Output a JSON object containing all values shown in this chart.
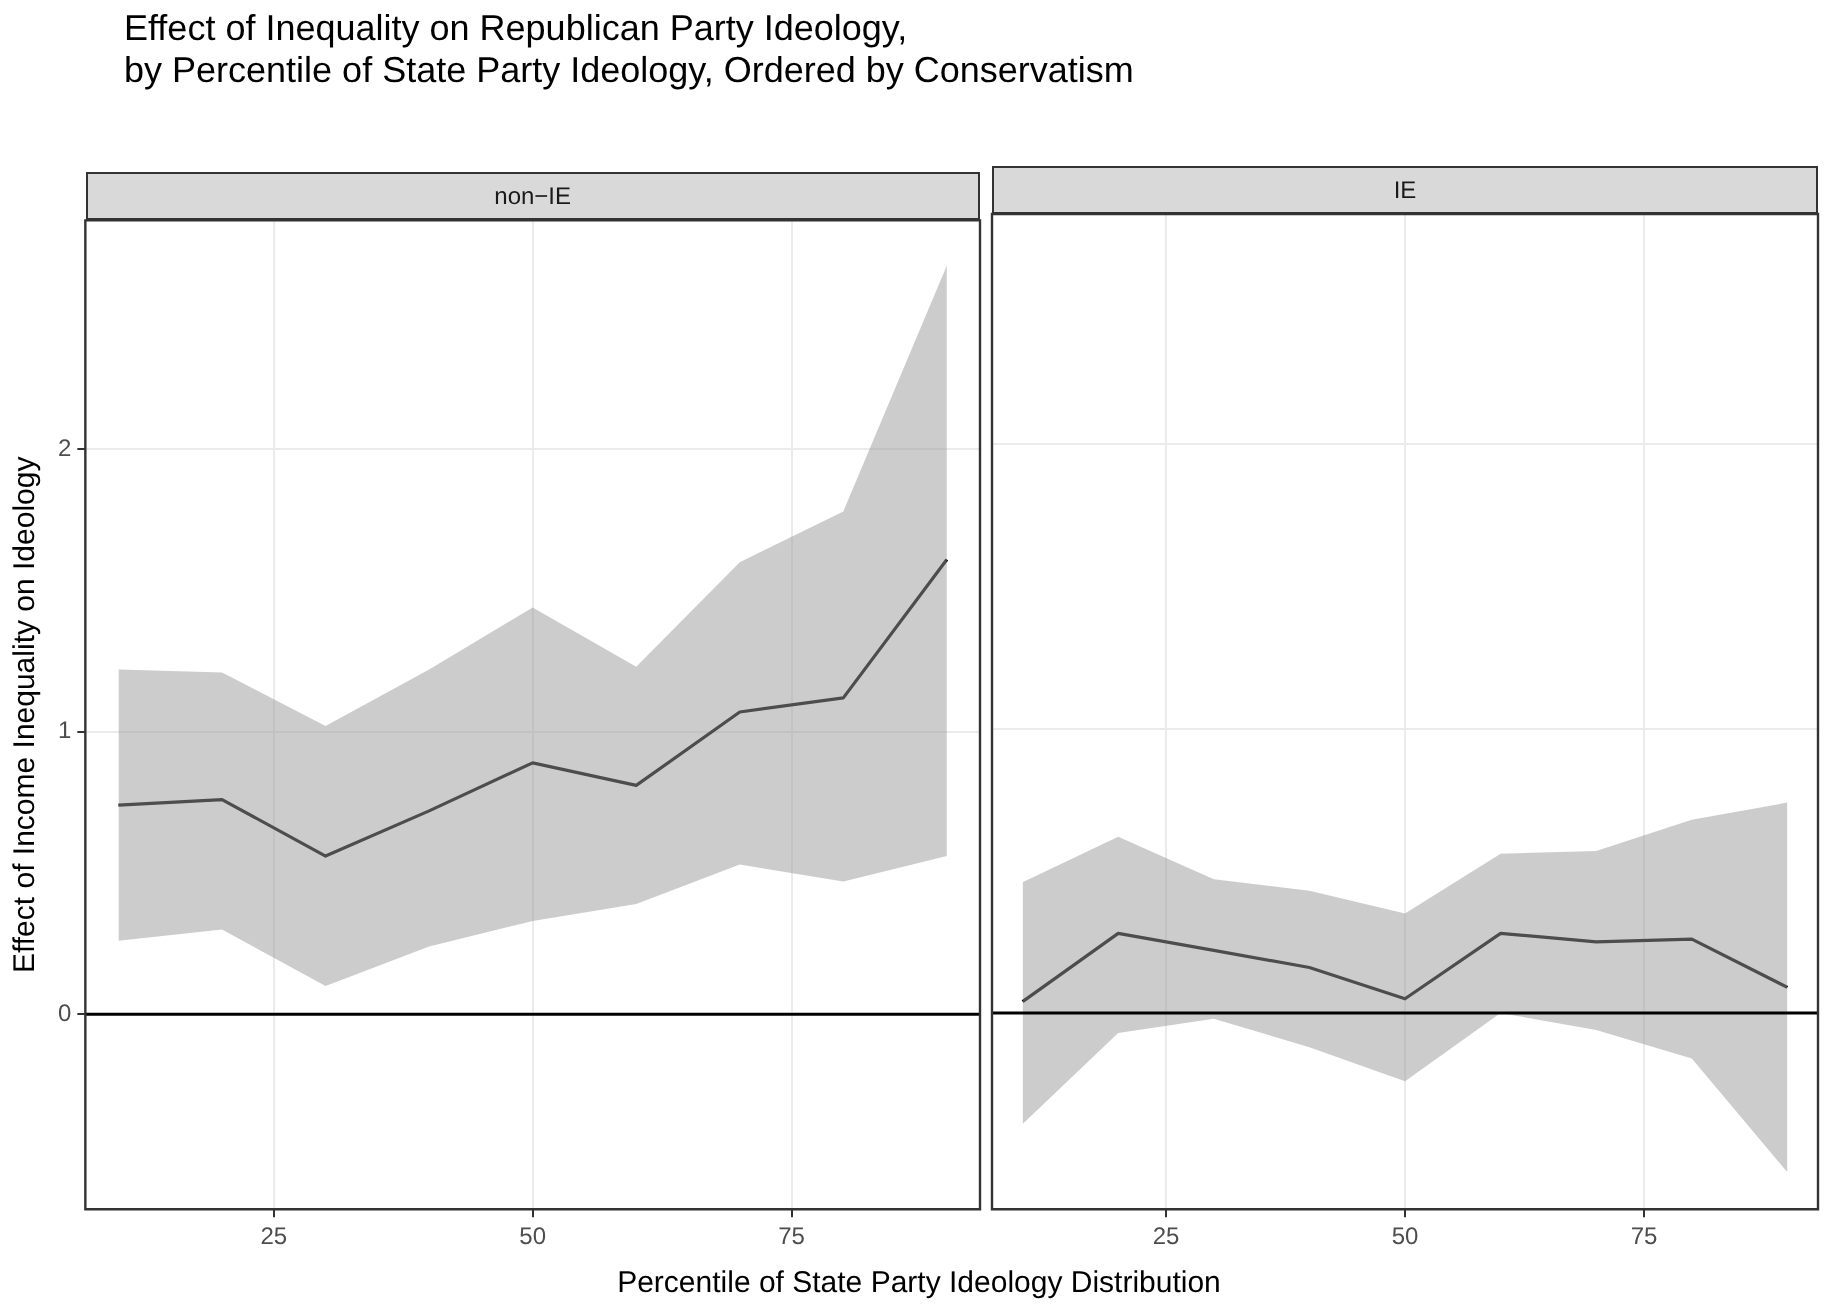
{
  "chart_data": [
    {
      "type": "line",
      "title": "Effect of Inequality on Republican Party Ideology,\nby Percentile of State Party Ideology, Ordered by Conservatism",
      "subtitle": "non−IE",
      "xlabel": "Percentile of State Party Ideology Distribution",
      "ylabel": "Effect of Income Inequality on Ideology",
      "x": [
        10,
        20,
        30,
        40,
        50,
        60,
        70,
        80,
        90
      ],
      "series": [
        {
          "color": "#000000",
          "values": [
            0.74,
            0.76,
            0.56,
            0.72,
            0.89,
            0.81,
            1.07,
            1.12,
            1.61
          ],
          "lower": [
            0.26,
            0.3,
            0.1,
            0.24,
            0.33,
            0.39,
            0.53,
            0.47,
            0.56
          ],
          "upper": [
            1.22,
            1.21,
            1.02,
            1.22,
            1.44,
            1.23,
            1.6,
            1.78,
            2.65
          ]
        }
      ],
      "xlim": [
        6.8,
        93.2
      ],
      "xticks": [
        25,
        50,
        75
      ],
      "ylim": [
        -0.69,
        2.81
      ],
      "yticks": [
        0,
        1,
        2
      ],
      "grid": true,
      "legend": false,
      "ref_lines": [
        {
          "axis": "y",
          "value": 0,
          "color": "#000000"
        }
      ]
    },
    {
      "type": "line",
      "subtitle": "IE",
      "x": [
        10,
        20,
        30,
        40,
        50,
        60,
        70,
        80,
        90
      ],
      "series": [
        {
          "color": "#000000",
          "values": [
            0.04,
            0.28,
            0.22,
            0.16,
            0.05,
            0.28,
            0.25,
            0.26,
            0.09
          ],
          "lower": [
            -0.39,
            -0.07,
            -0.02,
            -0.12,
            -0.24,
            0,
            -0.06,
            -0.16,
            -0.56
          ],
          "upper": [
            0.46,
            0.62,
            0.47,
            0.43,
            0.35,
            0.56,
            0.57,
            0.68,
            0.74
          ]
        }
      ],
      "xlim": [
        6.8,
        93.2
      ],
      "xticks": [
        25,
        50,
        75
      ],
      "ylim": [
        -0.69,
        2.81
      ],
      "yticks": [
        0,
        1,
        2
      ],
      "grid": true,
      "legend": false,
      "tick_labels": "x",
      "ref_lines": [
        {
          "axis": "y",
          "value": 0,
          "color": "#000000"
        }
      ]
    }
  ]
}
